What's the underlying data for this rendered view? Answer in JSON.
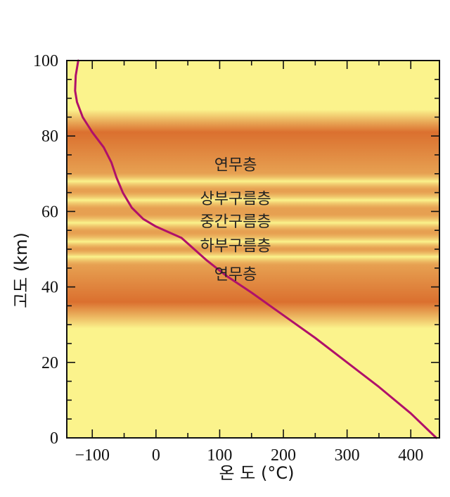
{
  "chart_data": {
    "type": "line",
    "title": "",
    "xlabel": "온 도 (°C)",
    "ylabel": "고도 (km)",
    "xlim": [
      -140,
      445
    ],
    "ylim": [
      0,
      100
    ],
    "x_ticks": [
      -100,
      0,
      100,
      200,
      300,
      400
    ],
    "x_tick_labels": [
      "−100",
      "0",
      "100",
      "200",
      "300",
      "400"
    ],
    "y_ticks": [
      0,
      20,
      40,
      60,
      80,
      100
    ],
    "y_tick_labels": [
      "0",
      "20",
      "40",
      "60",
      "80",
      "100"
    ],
    "series": [
      {
        "name": "temperature-profile",
        "color": "#b0106a",
        "x": [
          -122,
          -126,
          -127,
          -124,
          -115,
          -100,
          -82,
          -70,
          -62,
          -52,
          -38,
          -20,
          0,
          20,
          40,
          60,
          80,
          110,
          150,
          200,
          250,
          300,
          350,
          400,
          440
        ],
        "y": [
          100,
          96,
          92,
          89,
          85,
          81,
          77,
          73,
          69,
          65,
          61,
          58,
          56,
          54.5,
          53,
          50,
          47,
          43,
          38.5,
          32.5,
          26.5,
          20,
          13.5,
          6.5,
          0
        ]
      }
    ],
    "background": {
      "base_color": "#fbf38c",
      "cloud_color": "#d9692a",
      "cloud_band_km": [
        30,
        86
      ],
      "light_bands_km": [
        48,
        52,
        57,
        63,
        68
      ]
    },
    "layer_labels": [
      "연무층",
      "상부구름층",
      "중간구름층",
      "하부구름층",
      "연무층"
    ],
    "layer_label_km": [
      72.5,
      63.5,
      57.5,
      51,
      43.5
    ],
    "layer_label_temp": 125
  }
}
